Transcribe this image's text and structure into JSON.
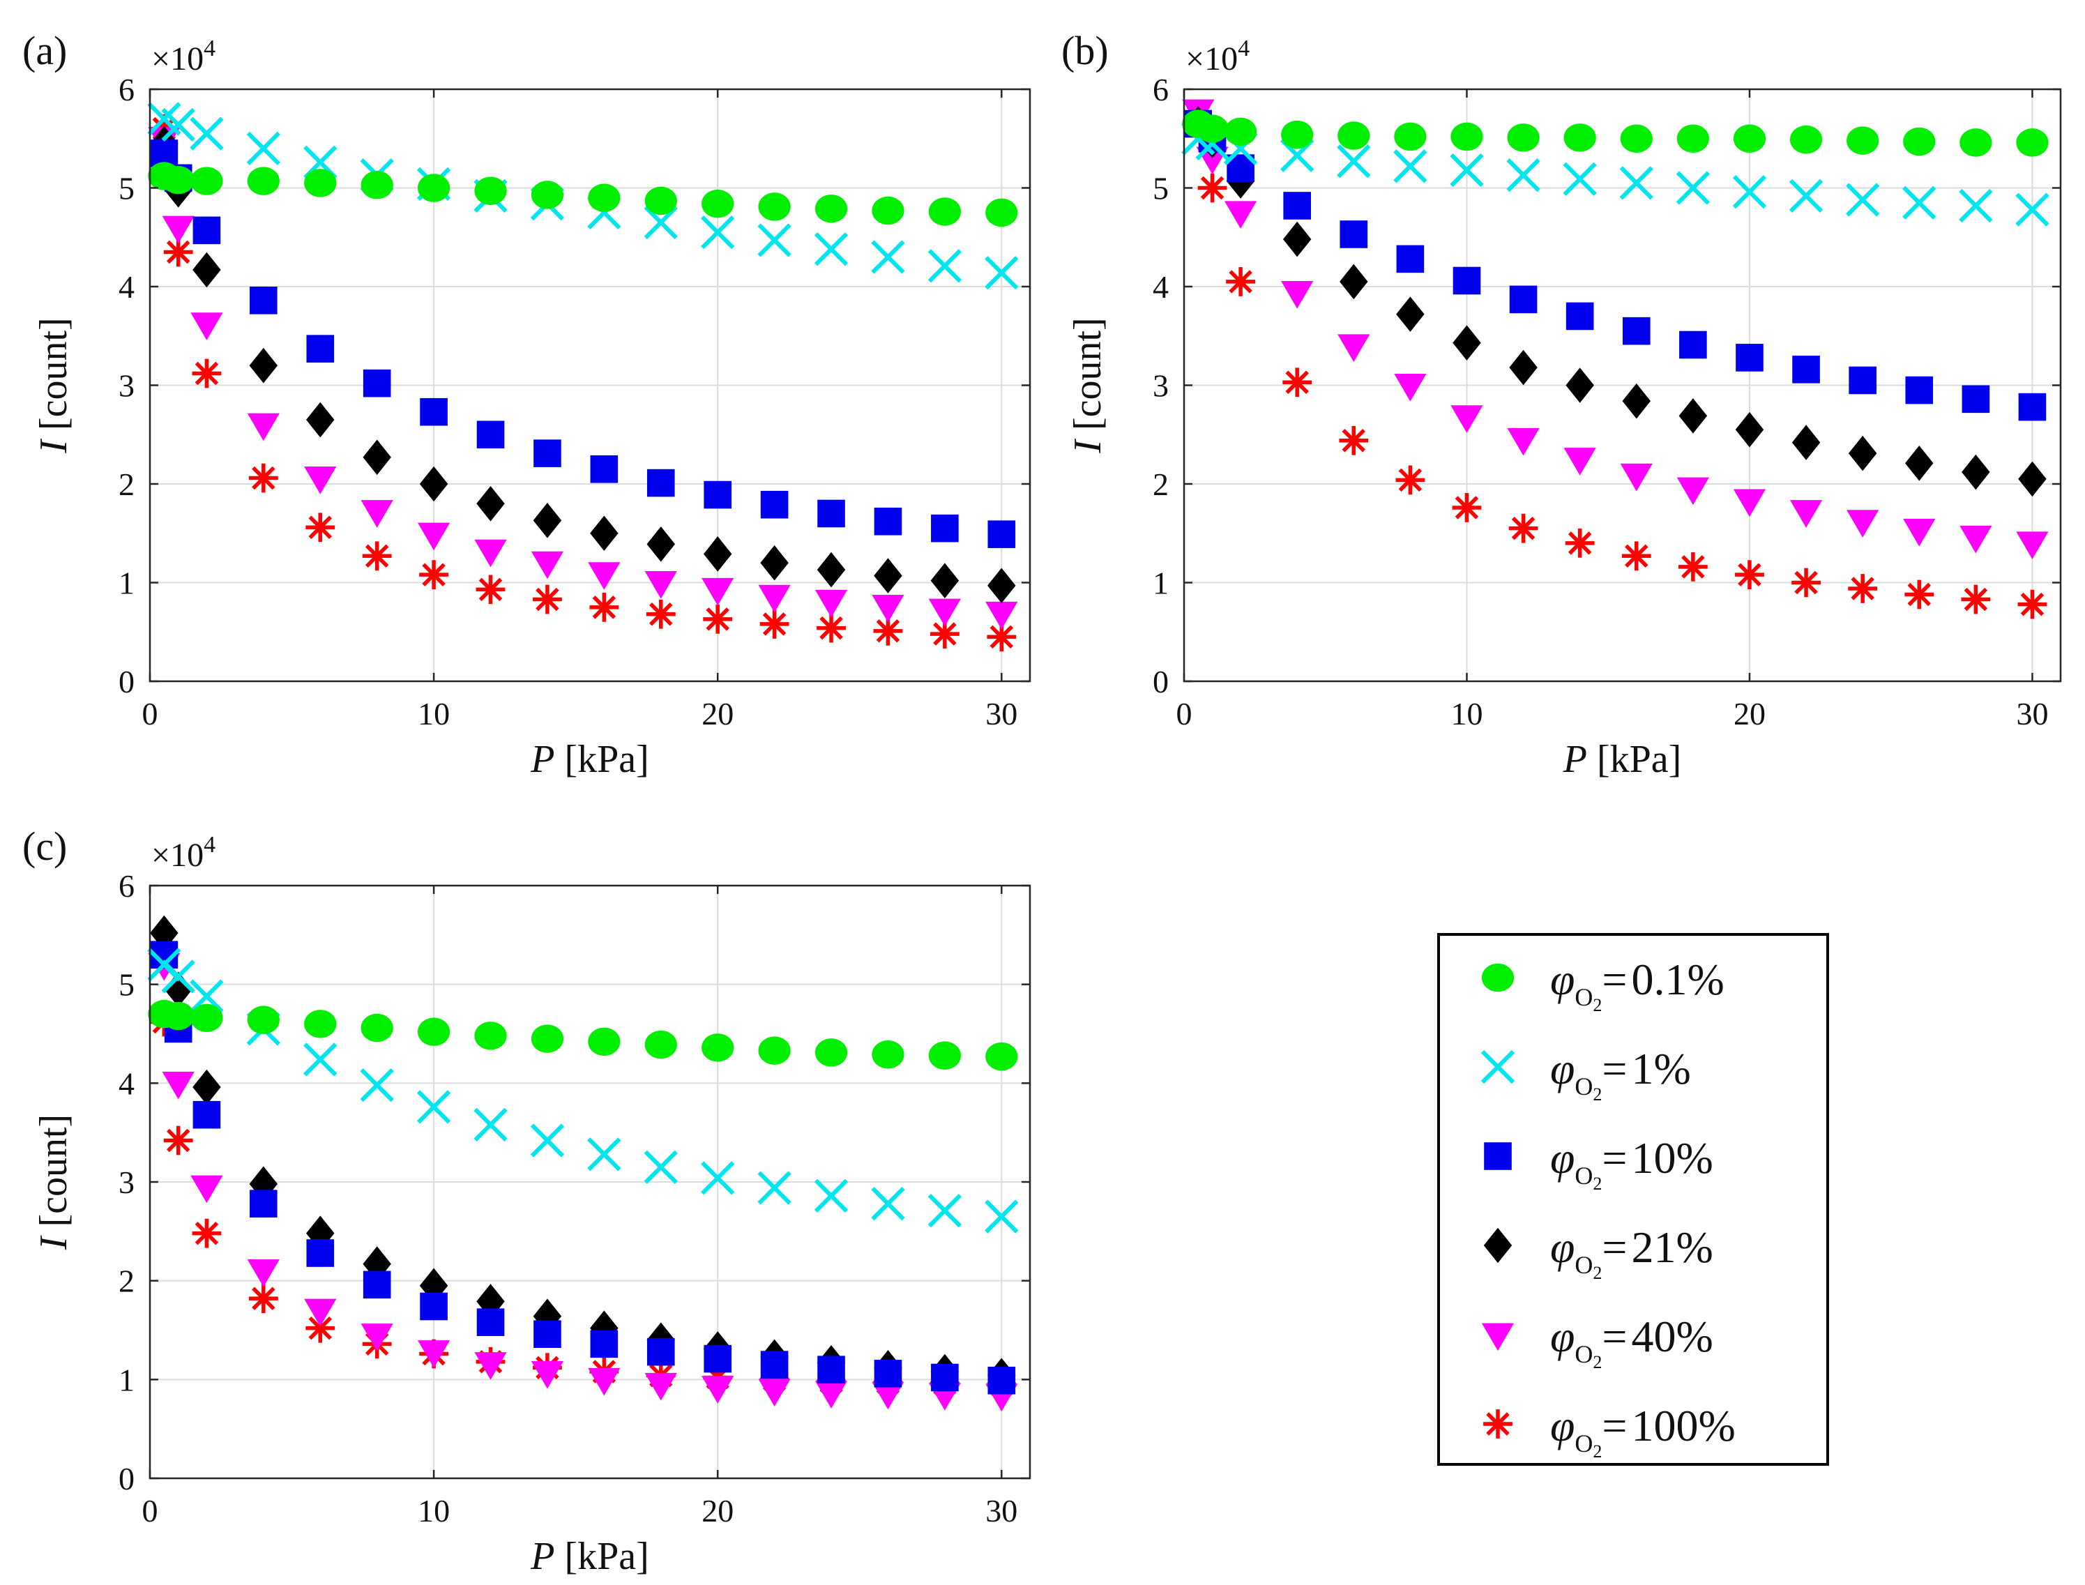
{
  "chart_data": [
    {
      "panel_label": "(a)",
      "type": "scatter",
      "xlabel_var": "P",
      "xlabel_unit": "[kPa]",
      "ylabel_var": "I",
      "ylabel_unit": "[count]",
      "exponent_base": "×10",
      "exponent_power": "4",
      "xlim": [
        0,
        31
      ],
      "ylim": [
        0,
        6
      ],
      "xticks": [
        0,
        10,
        20,
        30
      ],
      "yticks": [
        0,
        1,
        2,
        3,
        4,
        5,
        6
      ],
      "grid": true,
      "x": [
        0.5,
        1,
        2,
        4,
        6,
        8,
        10,
        12,
        14,
        16,
        18,
        20,
        22,
        24,
        26,
        28,
        30
      ],
      "series": [
        {
          "name": "0.1%",
          "values": [
            5.12,
            5.08,
            5.07,
            5.07,
            5.05,
            5.03,
            5.0,
            4.97,
            4.93,
            4.9,
            4.87,
            4.84,
            4.81,
            4.79,
            4.77,
            4.76,
            4.75
          ]
        },
        {
          "name": "1%",
          "values": [
            5.7,
            5.64,
            5.55,
            5.4,
            5.26,
            5.13,
            5.04,
            4.92,
            4.84,
            4.75,
            4.65,
            4.55,
            4.47,
            4.38,
            4.3,
            4.21,
            4.14
          ]
        },
        {
          "name": "10%",
          "values": [
            5.35,
            5.1,
            4.57,
            3.86,
            3.37,
            3.02,
            2.73,
            2.5,
            2.31,
            2.15,
            2.01,
            1.89,
            1.79,
            1.7,
            1.62,
            1.55,
            1.49
          ]
        },
        {
          "name": "21%",
          "values": [
            5.45,
            4.98,
            4.17,
            3.2,
            2.65,
            2.27,
            2.0,
            1.8,
            1.63,
            1.5,
            1.39,
            1.29,
            1.2,
            1.13,
            1.07,
            1.02,
            0.97
          ]
        },
        {
          "name": "40%",
          "values": [
            5.5,
            4.6,
            3.62,
            2.6,
            2.06,
            1.72,
            1.49,
            1.32,
            1.2,
            1.09,
            1.0,
            0.93,
            0.86,
            0.81,
            0.76,
            0.72,
            0.69
          ]
        },
        {
          "name": "100%",
          "values": [
            5.6,
            4.35,
            3.12,
            2.06,
            1.56,
            1.27,
            1.08,
            0.93,
            0.83,
            0.75,
            0.68,
            0.63,
            0.58,
            0.54,
            0.51,
            0.48,
            0.45
          ]
        }
      ]
    },
    {
      "panel_label": "(b)",
      "type": "scatter",
      "xlabel_var": "P",
      "xlabel_unit": "[kPa]",
      "ylabel_var": "I",
      "ylabel_unit": "[count]",
      "exponent_base": "×10",
      "exponent_power": "4",
      "xlim": [
        0,
        31
      ],
      "ylim": [
        0,
        6
      ],
      "xticks": [
        0,
        10,
        20,
        30
      ],
      "yticks": [
        0,
        1,
        2,
        3,
        4,
        5,
        6
      ],
      "grid": true,
      "x": [
        0.5,
        1,
        2,
        4,
        6,
        8,
        10,
        12,
        14,
        16,
        18,
        20,
        22,
        24,
        26,
        28,
        30
      ],
      "series": [
        {
          "name": "0.1%",
          "values": [
            5.65,
            5.6,
            5.57,
            5.54,
            5.53,
            5.52,
            5.52,
            5.51,
            5.51,
            5.5,
            5.5,
            5.5,
            5.49,
            5.48,
            5.47,
            5.46,
            5.46
          ]
        },
        {
          "name": "1%",
          "values": [
            5.5,
            5.45,
            5.4,
            5.33,
            5.27,
            5.22,
            5.18,
            5.13,
            5.09,
            5.05,
            5.0,
            4.96,
            4.92,
            4.88,
            4.85,
            4.82,
            4.78
          ]
        },
        {
          "name": "10%",
          "values": [
            5.65,
            5.5,
            5.2,
            4.82,
            4.53,
            4.28,
            4.06,
            3.87,
            3.7,
            3.55,
            3.41,
            3.28,
            3.16,
            3.05,
            2.95,
            2.86,
            2.78
          ]
        },
        {
          "name": "21%",
          "values": [
            5.65,
            5.48,
            5.07,
            4.48,
            4.05,
            3.72,
            3.43,
            3.18,
            3.0,
            2.84,
            2.69,
            2.55,
            2.42,
            2.31,
            2.21,
            2.12,
            2.05
          ]
        },
        {
          "name": "40%",
          "values": [
            5.78,
            5.3,
            4.75,
            3.94,
            3.4,
            3.0,
            2.68,
            2.45,
            2.25,
            2.09,
            1.95,
            1.83,
            1.72,
            1.62,
            1.53,
            1.46,
            1.4
          ]
        },
        {
          "name": "100%",
          "values": [
            5.72,
            5.0,
            4.05,
            3.03,
            2.44,
            2.04,
            1.76,
            1.55,
            1.4,
            1.27,
            1.16,
            1.08,
            1.0,
            0.94,
            0.88,
            0.83,
            0.78
          ]
        }
      ]
    },
    {
      "panel_label": "(c)",
      "type": "scatter",
      "xlabel_var": "P",
      "xlabel_unit": "[kPa]",
      "ylabel_var": "I",
      "ylabel_unit": "[count]",
      "exponent_base": "×10",
      "exponent_power": "4",
      "xlim": [
        0,
        31
      ],
      "ylim": [
        0,
        6
      ],
      "xticks": [
        0,
        10,
        20,
        30
      ],
      "yticks": [
        0,
        1,
        2,
        3,
        4,
        5,
        6
      ],
      "grid": true,
      "x": [
        0.5,
        1,
        2,
        4,
        6,
        8,
        10,
        12,
        14,
        16,
        18,
        20,
        22,
        24,
        26,
        28,
        30
      ],
      "series": [
        {
          "name": "0.1%",
          "values": [
            4.7,
            4.68,
            4.66,
            4.64,
            4.6,
            4.56,
            4.52,
            4.48,
            4.45,
            4.42,
            4.39,
            4.36,
            4.33,
            4.31,
            4.29,
            4.28,
            4.27
          ]
        },
        {
          "name": "1%",
          "values": [
            5.2,
            5.08,
            4.88,
            4.55,
            4.24,
            3.98,
            3.76,
            3.58,
            3.42,
            3.28,
            3.15,
            3.04,
            2.94,
            2.86,
            2.78,
            2.71,
            2.65
          ]
        },
        {
          "name": "10%",
          "values": [
            5.3,
            4.55,
            3.68,
            2.78,
            2.28,
            1.96,
            1.74,
            1.58,
            1.46,
            1.36,
            1.28,
            1.21,
            1.15,
            1.1,
            1.06,
            1.02,
            0.99
          ]
        },
        {
          "name": "21%",
          "values": [
            5.52,
            4.95,
            3.96,
            2.98,
            2.48,
            2.17,
            1.95,
            1.79,
            1.64,
            1.52,
            1.4,
            1.31,
            1.23,
            1.17,
            1.12,
            1.08,
            1.04
          ]
        },
        {
          "name": "40%",
          "values": [
            5.2,
            4.0,
            2.95,
            2.1,
            1.7,
            1.45,
            1.28,
            1.16,
            1.07,
            1.0,
            0.95,
            0.92,
            0.89,
            0.87,
            0.86,
            0.85,
            0.84
          ]
        },
        {
          "name": "100%",
          "values": [
            4.62,
            3.42,
            2.48,
            1.82,
            1.52,
            1.36,
            1.26,
            1.18,
            1.12,
            1.08,
            1.04,
            1.02,
            1.0,
            0.98,
            0.97,
            0.96,
            0.95
          ]
        }
      ]
    }
  ],
  "legend": {
    "symbol": "φ",
    "subscript": "O",
    "subscript_num": "2",
    "equals": "=",
    "entries": [
      {
        "label": "0.1%",
        "marker": "circle",
        "color": "#00ee00"
      },
      {
        "label": "1%",
        "marker": "cross",
        "color": "#00e5ee"
      },
      {
        "label": "10%",
        "marker": "square",
        "color": "#0000ee"
      },
      {
        "label": "21%",
        "marker": "diamond",
        "color": "#000000"
      },
      {
        "label": "40%",
        "marker": "triangle-down",
        "color": "#ff00ff"
      },
      {
        "label": "100%",
        "marker": "asterisk",
        "color": "#ff0000"
      }
    ]
  }
}
